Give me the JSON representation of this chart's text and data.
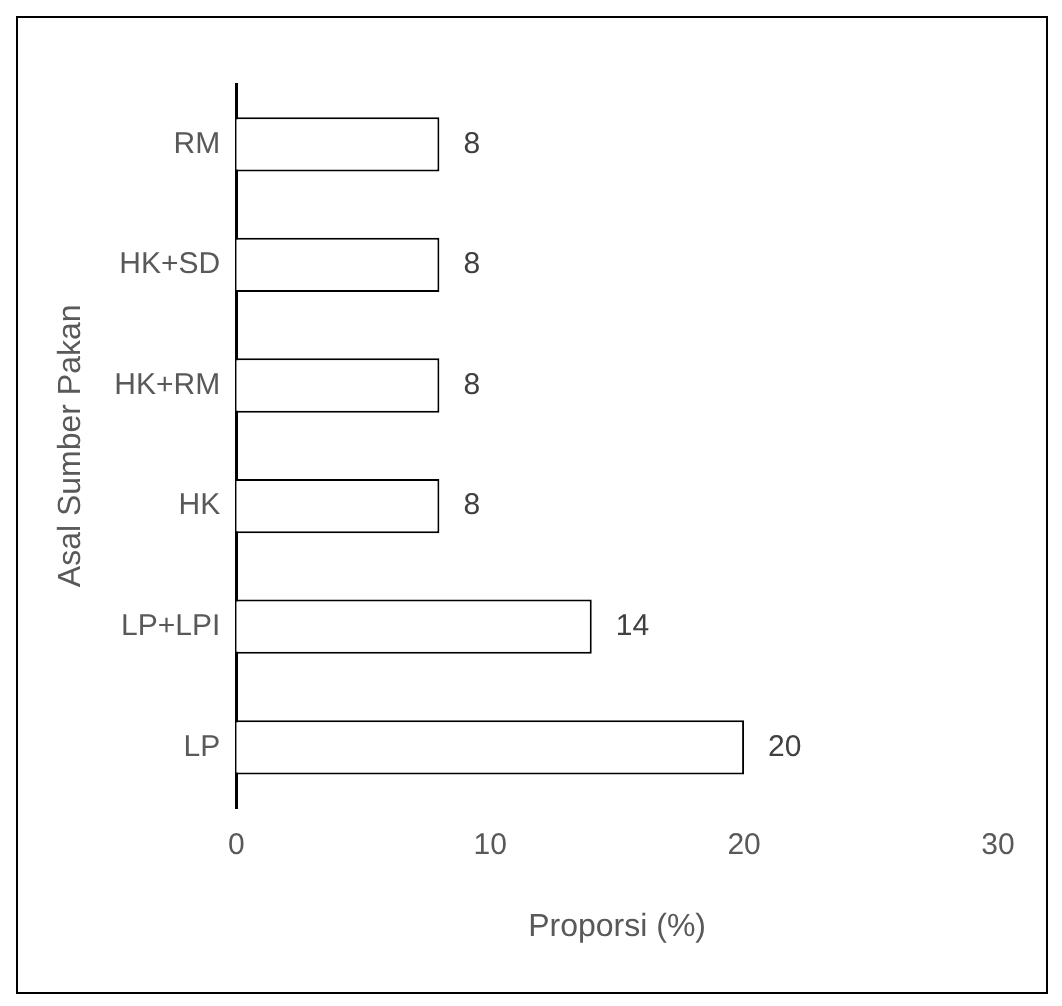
{
  "chart_data": {
    "type": "bar",
    "orientation": "horizontal",
    "ylabel": "Asal Sumber Pakan",
    "xlabel": "Proporsi (%)",
    "categories": [
      "RM",
      "HK+SD",
      "HK+RM",
      "HK",
      "LP+LPI",
      "LP"
    ],
    "values": [
      8,
      8,
      8,
      8,
      14,
      20
    ],
    "color": "#ffffff",
    "xlim": [
      0,
      30
    ],
    "xticks": [
      0,
      10,
      20,
      30
    ],
    "grid": false,
    "legend": false,
    "data_labels": true
  }
}
